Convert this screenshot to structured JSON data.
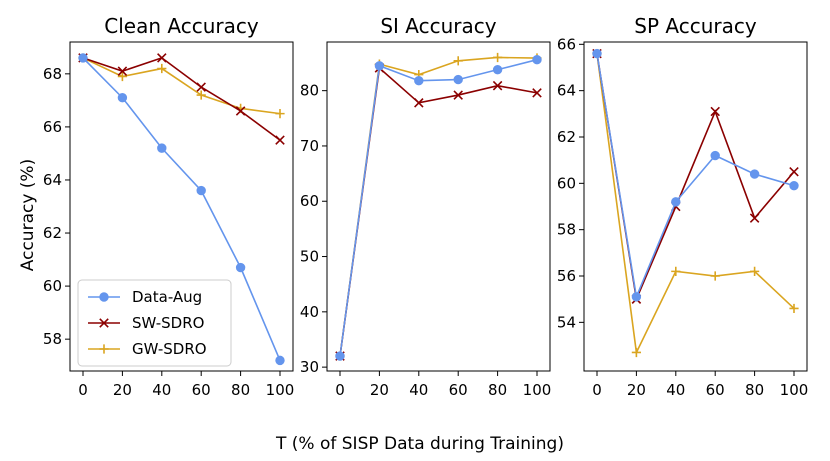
{
  "xlabel": "T (% of SISP Data during Training)",
  "ylabel": "Accuracy (%)",
  "colors": {
    "Data-Aug": "#6495ED",
    "SW-SDRO": "#8B0000",
    "GW-SDRO": "#DAA520"
  },
  "legend": [
    "Data-Aug",
    "SW-SDRO",
    "GW-SDRO"
  ],
  "chart_data": [
    {
      "type": "line",
      "title": "Clean Accuracy",
      "x": [
        0,
        20,
        40,
        60,
        80,
        100
      ],
      "xticks": [
        "0",
        "20",
        "40",
        "60",
        "80",
        "100"
      ],
      "ylim": [
        56.8,
        69.2
      ],
      "yticks": [
        58,
        60,
        62,
        64,
        66,
        68
      ],
      "series": [
        {
          "name": "Data-Aug",
          "marker": "circle",
          "values": [
            68.6,
            67.1,
            65.2,
            63.6,
            60.7,
            57.2
          ]
        },
        {
          "name": "SW-SDRO",
          "marker": "x",
          "values": [
            68.6,
            68.1,
            68.6,
            67.5,
            66.6,
            65.5
          ]
        },
        {
          "name": "GW-SDRO",
          "marker": "plus",
          "values": [
            68.6,
            67.9,
            68.2,
            67.2,
            66.7,
            66.5
          ]
        }
      ]
    },
    {
      "type": "line",
      "title": "SI Accuracy",
      "x": [
        0,
        20,
        40,
        60,
        80,
        100
      ],
      "xticks": [
        "0",
        "20",
        "40",
        "60",
        "80",
        "100"
      ],
      "ylim": [
        29.3,
        88.8
      ],
      "yticks": [
        30,
        40,
        50,
        60,
        70,
        80
      ],
      "series": [
        {
          "name": "Data-Aug",
          "marker": "circle",
          "values": [
            32.0,
            84.5,
            81.8,
            82.0,
            83.8,
            85.6
          ]
        },
        {
          "name": "SW-SDRO",
          "marker": "x",
          "values": [
            32.0,
            84.1,
            77.8,
            79.2,
            80.9,
            79.6
          ]
        },
        {
          "name": "GW-SDRO",
          "marker": "plus",
          "values": [
            32.0,
            84.8,
            82.9,
            85.4,
            86.0,
            85.9
          ]
        }
      ]
    },
    {
      "type": "line",
      "title": "SP Accuracy",
      "x": [
        0,
        20,
        40,
        60,
        80,
        100
      ],
      "xticks": [
        "0",
        "20",
        "40",
        "60",
        "80",
        "100"
      ],
      "ylim": [
        51.9,
        66.1
      ],
      "yticks": [
        54,
        56,
        58,
        60,
        62,
        64,
        66
      ],
      "series": [
        {
          "name": "Data-Aug",
          "marker": "circle",
          "values": [
            65.6,
            55.1,
            59.2,
            61.2,
            60.4,
            59.9
          ]
        },
        {
          "name": "SW-SDRO",
          "marker": "x",
          "values": [
            65.6,
            55.0,
            59.0,
            63.1,
            58.5,
            60.5
          ]
        },
        {
          "name": "GW-SDRO",
          "marker": "plus",
          "values": [
            65.6,
            52.7,
            56.2,
            56.0,
            56.2,
            54.6
          ]
        }
      ]
    }
  ]
}
